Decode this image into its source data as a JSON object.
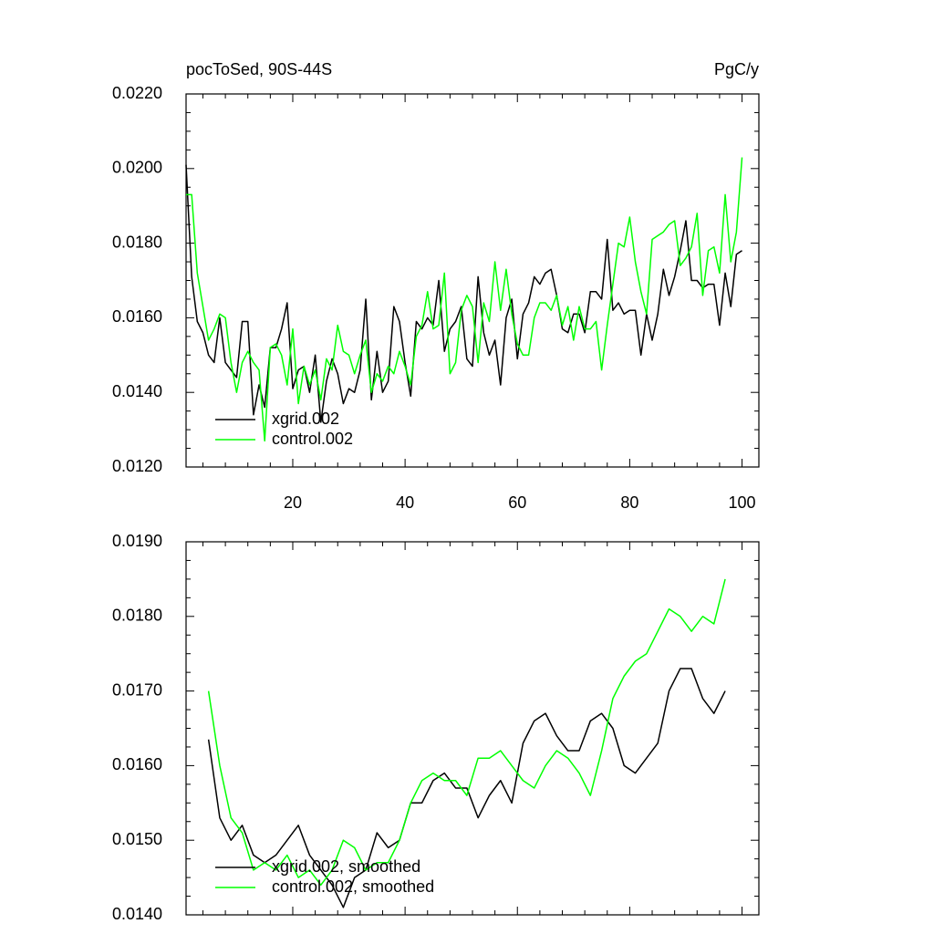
{
  "chart_data": [
    {
      "type": "line",
      "title": "pocToSed, 90S-44S",
      "units": "PgC/y",
      "x": [
        1,
        2,
        3,
        4,
        5,
        6,
        7,
        8,
        9,
        10,
        11,
        12,
        13,
        14,
        15,
        16,
        17,
        18,
        19,
        20,
        21,
        22,
        23,
        24,
        25,
        26,
        27,
        28,
        29,
        30,
        31,
        32,
        33,
        34,
        35,
        36,
        37,
        38,
        39,
        40,
        41,
        42,
        43,
        44,
        45,
        46,
        47,
        48,
        49,
        50,
        51,
        52,
        53,
        54,
        55,
        56,
        57,
        58,
        59,
        60,
        61,
        62,
        63,
        64,
        65,
        66,
        67,
        68,
        69,
        70,
        71,
        72,
        73,
        74,
        75,
        76,
        77,
        78,
        79,
        80,
        81,
        82,
        83,
        84,
        85,
        86,
        87,
        88,
        89,
        90,
        91,
        92,
        93,
        94,
        95,
        96,
        97,
        98,
        99,
        100
      ],
      "series": [
        {
          "name": "xgrid.002",
          "color": "#000000",
          "values": [
            0.0201,
            0.0171,
            0.0159,
            0.0156,
            0.015,
            0.0148,
            0.016,
            0.0148,
            0.0146,
            0.0144,
            0.0159,
            0.0159,
            0.0134,
            0.0142,
            0.0136,
            0.0152,
            0.0152,
            0.0157,
            0.0164,
            0.0141,
            0.0146,
            0.0147,
            0.014,
            0.015,
            0.0132,
            0.0143,
            0.0149,
            0.0145,
            0.0137,
            0.0141,
            0.014,
            0.0146,
            0.0165,
            0.0138,
            0.0151,
            0.014,
            0.0143,
            0.0163,
            0.0159,
            0.0148,
            0.0139,
            0.0159,
            0.0157,
            0.016,
            0.0158,
            0.017,
            0.0151,
            0.0157,
            0.0159,
            0.0163,
            0.0149,
            0.0147,
            0.0171,
            0.0156,
            0.015,
            0.0154,
            0.0142,
            0.016,
            0.0165,
            0.0149,
            0.0161,
            0.0164,
            0.0171,
            0.0169,
            0.0172,
            0.0173,
            0.0166,
            0.0157,
            0.0156,
            0.0161,
            0.0161,
            0.0156,
            0.0167,
            0.0167,
            0.0165,
            0.0181,
            0.0162,
            0.0164,
            0.0161,
            0.0162,
            0.0162,
            0.015,
            0.0161,
            0.0154,
            0.0161,
            0.0173,
            0.0166,
            0.0171,
            0.0178,
            0.0186,
            0.017,
            0.017,
            0.0168,
            0.0169,
            0.0169,
            0.0158,
            0.0172,
            0.0163,
            0.0177,
            0.0178
          ]
        },
        {
          "name": "control.002",
          "color": "#00ff00",
          "values": [
            0.0193,
            0.0193,
            0.0172,
            0.0163,
            0.0154,
            0.0157,
            0.0161,
            0.016,
            0.0148,
            0.014,
            0.0148,
            0.0151,
            0.0148,
            0.0146,
            0.0127,
            0.0152,
            0.0153,
            0.015,
            0.0142,
            0.0157,
            0.0137,
            0.0147,
            0.0142,
            0.0146,
            0.0138,
            0.0149,
            0.0146,
            0.0158,
            0.0151,
            0.015,
            0.0145,
            0.015,
            0.0154,
            0.014,
            0.0145,
            0.0143,
            0.0147,
            0.0145,
            0.0151,
            0.0147,
            0.0142,
            0.0155,
            0.0158,
            0.0167,
            0.0157,
            0.0158,
            0.0172,
            0.0145,
            0.0148,
            0.0162,
            0.0166,
            0.0163,
            0.0148,
            0.0164,
            0.0159,
            0.0175,
            0.0162,
            0.0173,
            0.0161,
            0.0153,
            0.015,
            0.015,
            0.016,
            0.0164,
            0.0164,
            0.0162,
            0.0166,
            0.0158,
            0.0163,
            0.0154,
            0.0163,
            0.0157,
            0.0157,
            0.0159,
            0.0146,
            0.0158,
            0.0169,
            0.018,
            0.0179,
            0.0187,
            0.0175,
            0.0167,
            0.0161,
            0.0181,
            0.0182,
            0.0183,
            0.0185,
            0.0186,
            0.0174,
            0.0176,
            0.0179,
            0.0188,
            0.0166,
            0.0178,
            0.0179,
            0.0172,
            0.0193,
            0.0175,
            0.0183,
            0.0203
          ]
        }
      ],
      "xlim": [
        1,
        103
      ],
      "xticks": [
        20,
        40,
        60,
        80,
        100
      ],
      "ylim": [
        0.012,
        0.022
      ],
      "yticks": [
        {
          "value": 0.012,
          "label": "0.0120"
        },
        {
          "value": 0.014,
          "label": "0.0140"
        },
        {
          "value": 0.016,
          "label": "0.0160"
        },
        {
          "value": 0.018,
          "label": "0.0180"
        },
        {
          "value": 0.02,
          "label": "0.0200"
        },
        {
          "value": 0.022,
          "label": "0.0220"
        }
      ],
      "legend": "lower left"
    },
    {
      "type": "line",
      "x": [
        5,
        7,
        9,
        11,
        13,
        15,
        17,
        19,
        21,
        23,
        25,
        27,
        29,
        31,
        33,
        35,
        37,
        39,
        41,
        43,
        45,
        47,
        49,
        51,
        53,
        55,
        57,
        59,
        61,
        63,
        65,
        67,
        69,
        71,
        73,
        75,
        77,
        79,
        81,
        83,
        85,
        87,
        89,
        91,
        93,
        95,
        97
      ],
      "series": [
        {
          "name": "xgrid.002, smoothed",
          "color": "#000000",
          "values": [
            0.01635,
            0.0153,
            0.015,
            0.0152,
            0.0148,
            0.0147,
            0.0148,
            0.015,
            0.0152,
            0.0148,
            0.0146,
            0.0144,
            0.0141,
            0.0145,
            0.0146,
            0.0151,
            0.0149,
            0.015,
            0.0155,
            0.0155,
            0.0158,
            0.0159,
            0.0157,
            0.0157,
            0.0153,
            0.0156,
            0.0158,
            0.0155,
            0.0163,
            0.0166,
            0.0167,
            0.0164,
            0.0162,
            0.0162,
            0.0166,
            0.0167,
            0.0165,
            0.016,
            0.0159,
            0.0161,
            0.0163,
            0.017,
            0.0173,
            0.0173,
            0.0169,
            0.0167,
            0.017
          ]
        },
        {
          "name": "control.002, smoothed",
          "color": "#00ff00",
          "values": [
            0.017,
            0.016,
            0.0153,
            0.0151,
            0.0146,
            0.0147,
            0.0146,
            0.0148,
            0.0145,
            0.0146,
            0.0144,
            0.0146,
            0.015,
            0.0149,
            0.0146,
            0.0147,
            0.0147,
            0.015,
            0.0155,
            0.0158,
            0.0159,
            0.0158,
            0.0158,
            0.0156,
            0.0161,
            0.0161,
            0.0162,
            0.016,
            0.0158,
            0.0157,
            0.016,
            0.0162,
            0.0161,
            0.0159,
            0.0156,
            0.0162,
            0.0169,
            0.0172,
            0.0174,
            0.0175,
            0.0178,
            0.0181,
            0.018,
            0.0178,
            0.018,
            0.0179,
            0.0185
          ]
        }
      ],
      "xlim": [
        1,
        103
      ],
      "xticks": [
        20,
        40,
        60,
        80,
        100
      ],
      "ylim": [
        0.014,
        0.019
      ],
      "yticks": [
        {
          "value": 0.014,
          "label": "0.0140"
        },
        {
          "value": 0.015,
          "label": "0.0150"
        },
        {
          "value": 0.016,
          "label": "0.0160"
        },
        {
          "value": 0.017,
          "label": "0.0170"
        },
        {
          "value": 0.018,
          "label": "0.0180"
        },
        {
          "value": 0.019,
          "label": "0.0190"
        }
      ],
      "legend": "lower left"
    }
  ]
}
